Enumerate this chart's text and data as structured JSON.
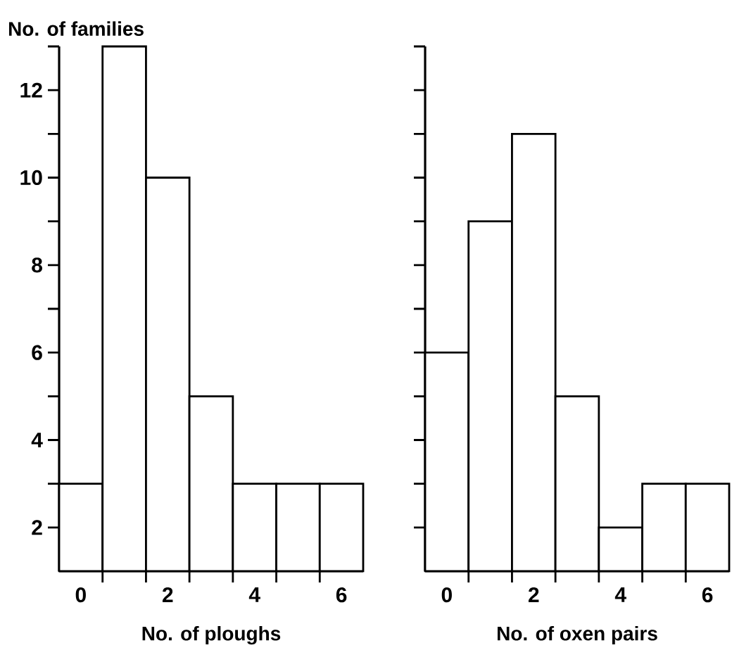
{
  "chart_data": [
    {
      "type": "histogram",
      "ylabel": "No. of families",
      "xlabel": "No. of ploughs",
      "bins": [
        -0.5,
        0.5,
        1.5,
        2.5,
        3.5,
        4.5,
        5.5,
        6.5
      ],
      "values": [
        3,
        13,
        10,
        5,
        3,
        3,
        3
      ],
      "color": "#ffffff",
      "xlim": [
        -0.5,
        6.5
      ],
      "ylim": [
        1,
        13
      ],
      "xticks": [
        0,
        2,
        4,
        6,
        {
          "value": 0.5,
          "label": null
        },
        {
          "value": 1.5,
          "label": null
        },
        {
          "value": 2.5,
          "label": null
        },
        {
          "value": 3.5,
          "label": null
        },
        {
          "value": 4.5,
          "label": null
        },
        {
          "value": 5.5,
          "label": null
        }
      ],
      "yticks": [
        2,
        4,
        6,
        8,
        10,
        12,
        {
          "value": 3,
          "label": null
        },
        {
          "value": 5,
          "label": null
        },
        {
          "value": 7,
          "label": null
        },
        {
          "value": 9,
          "label": null
        },
        {
          "value": 11,
          "label": null
        },
        {
          "value": 13,
          "label": null
        }
      ]
    },
    {
      "type": "histogram",
      "xlabel": "No. of oxen pairs",
      "bins": [
        -0.5,
        0.5,
        1.5,
        2.5,
        3.5,
        4.5,
        5.5,
        6.5
      ],
      "values": [
        6,
        9,
        11,
        5,
        2,
        3,
        3
      ],
      "color": "#ffffff",
      "xlim": [
        -0.5,
        6.5
      ],
      "ylim": [
        1,
        13
      ],
      "tick_labels": "x",
      "xticks": [
        0,
        2,
        4,
        6,
        {
          "value": 0.5,
          "label": null
        },
        {
          "value": 1.5,
          "label": null
        },
        {
          "value": 2.5,
          "label": null
        },
        {
          "value": 3.5,
          "label": null
        },
        {
          "value": 4.5,
          "label": null
        },
        {
          "value": 5.5,
          "label": null
        }
      ],
      "yticks": [
        2,
        4,
        6,
        8,
        10,
        12,
        {
          "value": 3,
          "label": null
        },
        {
          "value": 5,
          "label": null
        },
        {
          "value": 7,
          "label": null
        },
        {
          "value": 9,
          "label": null
        },
        {
          "value": 11,
          "label": null
        },
        {
          "value": 13,
          "label": null
        }
      ]
    }
  ]
}
